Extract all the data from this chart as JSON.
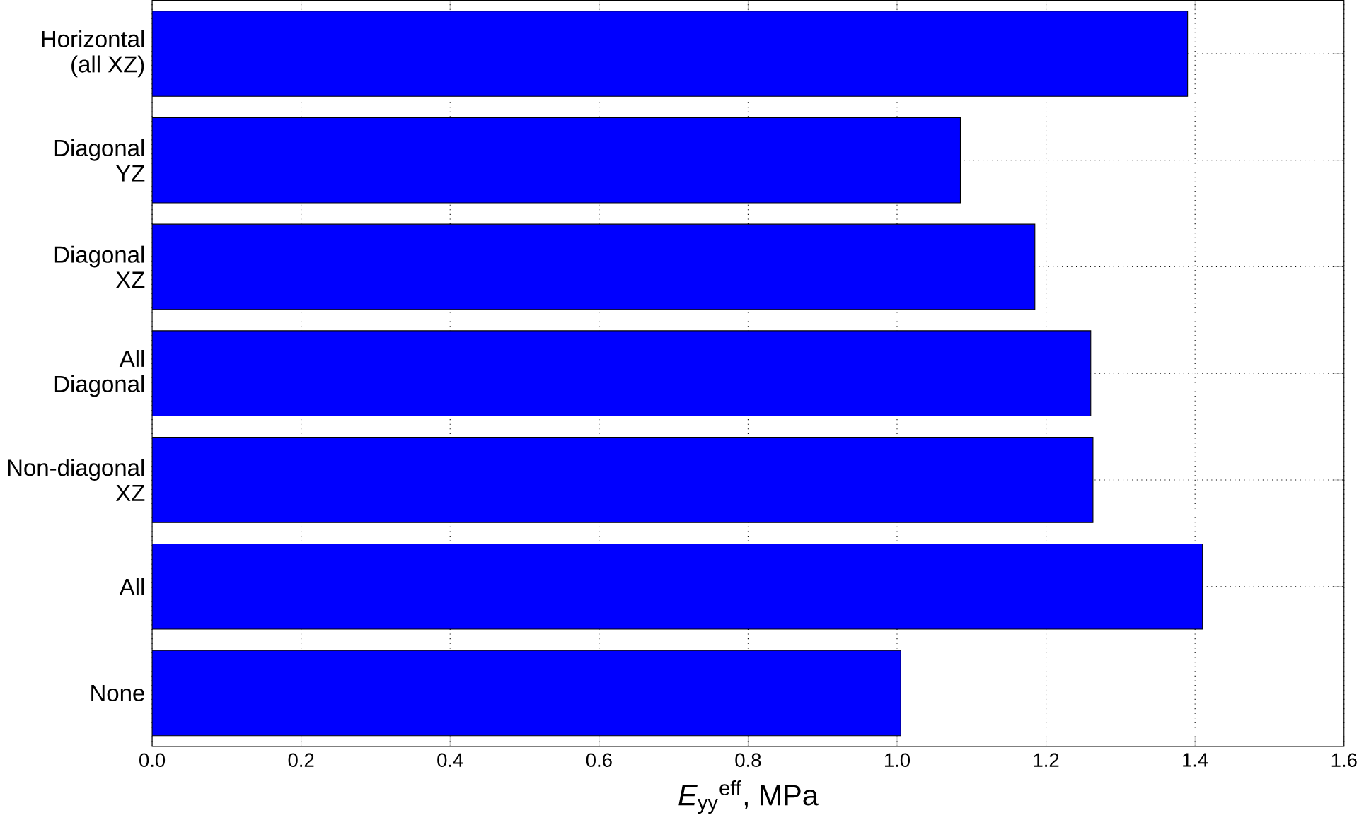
{
  "chart_data": {
    "type": "bar",
    "orientation": "horizontal",
    "categories": [
      "Horizontal\n(all XZ)",
      "Diagonal\nYZ",
      "Diagonal\nXZ",
      "All\nDiagonal",
      "Non-diagonal\nXZ",
      "All",
      "None"
    ],
    "values": [
      1.39,
      1.085,
      1.185,
      1.26,
      1.263,
      1.41,
      1.005
    ],
    "color": "#0000ff",
    "xlabel": "*E*$_{yy}$$^{eff}$, MPa",
    "xlim": [
      0,
      1.6
    ],
    "xticks": [
      {
        "value": 0,
        "label": "0.0"
      },
      0.2,
      0.4,
      0.6,
      0.8,
      {
        "value": 1,
        "label": "1.0"
      },
      1.2,
      1.4,
      1.6
    ],
    "grid": true
  }
}
